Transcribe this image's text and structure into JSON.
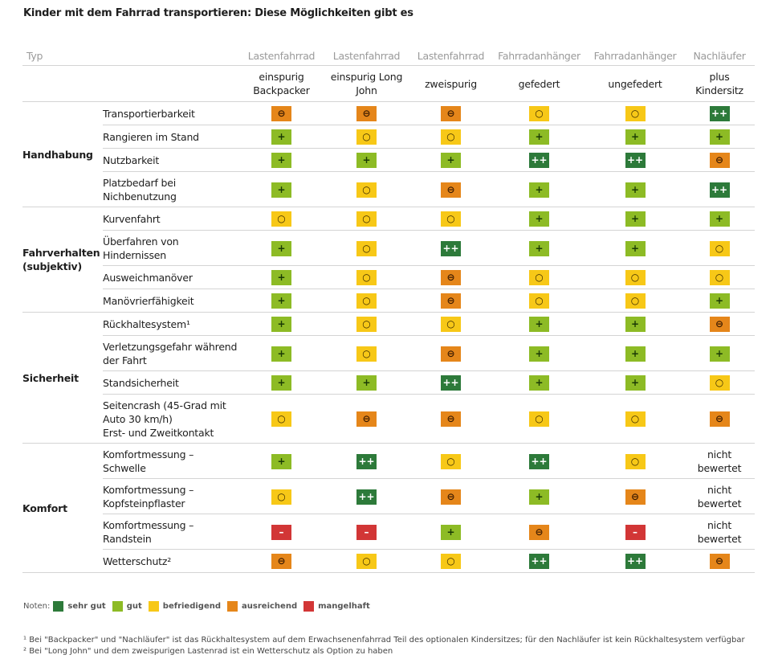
{
  "title": "Kinder mit dem Fahrrad transportieren: Diese Möglichkeiten gibt es",
  "header": {
    "typ_label": "Typ",
    "columns": [
      {
        "type": "Lastenfahrrad",
        "variant": "einspurig Backpacker"
      },
      {
        "type": "Lastenfahrrad",
        "variant": "einspurig Long John"
      },
      {
        "type": "Lastenfahrrad",
        "variant": "zweispurig"
      },
      {
        "type": "Fahrradanhänger",
        "variant": "gefedert"
      },
      {
        "type": "Fahrradanhänger",
        "variant": "ungefedert"
      },
      {
        "type": "Nachläufer",
        "variant": "plus Kindersitz"
      }
    ]
  },
  "grade_symbols": {
    "sehrgut": "++",
    "gut": "+",
    "befriedigend": "○",
    "ausreichend": "⊖",
    "mangelhaft": "–"
  },
  "categories": [
    {
      "name": "Handhabung",
      "rows": [
        {
          "criterion": "Transportierbarkeit",
          "ratings": [
            "ausreichend",
            "ausreichend",
            "ausreichend",
            "befriedigend",
            "befriedigend",
            "sehrgut"
          ]
        },
        {
          "criterion": "Rangieren im Stand",
          "ratings": [
            "gut",
            "befriedigend",
            "befriedigend",
            "gut",
            "gut",
            "gut"
          ]
        },
        {
          "criterion": "Nutzbarkeit",
          "ratings": [
            "gut",
            "gut",
            "gut",
            "sehrgut",
            "sehrgut",
            "ausreichend"
          ]
        },
        {
          "criterion": "Platzbedarf bei Nichbenutzung",
          "ratings": [
            "gut",
            "befriedigend",
            "ausreichend",
            "gut",
            "gut",
            "sehrgut"
          ]
        }
      ]
    },
    {
      "name": "Fahrverhalten (subjektiv)",
      "rows": [
        {
          "criterion": "Kurvenfahrt",
          "ratings": [
            "befriedigend",
            "befriedigend",
            "befriedigend",
            "gut",
            "gut",
            "gut"
          ]
        },
        {
          "criterion": "Überfahren von Hindernissen",
          "ratings": [
            "gut",
            "befriedigend",
            "sehrgut",
            "gut",
            "gut",
            "befriedigend"
          ]
        },
        {
          "criterion": "Ausweichmanöver",
          "ratings": [
            "gut",
            "befriedigend",
            "ausreichend",
            "befriedigend",
            "befriedigend",
            "befriedigend"
          ]
        },
        {
          "criterion": "Manövrierfähigkeit",
          "ratings": [
            "gut",
            "befriedigend",
            "ausreichend",
            "befriedigend",
            "befriedigend",
            "gut"
          ]
        }
      ]
    },
    {
      "name": "Sicherheit",
      "rows": [
        {
          "criterion": "Rückhaltesystem¹",
          "ratings": [
            "gut",
            "befriedigend",
            "befriedigend",
            "gut",
            "gut",
            "ausreichend"
          ]
        },
        {
          "criterion": "Verletzungsgefahr während der Fahrt",
          "ratings": [
            "gut",
            "befriedigend",
            "ausreichend",
            "gut",
            "gut",
            "gut"
          ]
        },
        {
          "criterion": "Standsicherheit",
          "ratings": [
            "gut",
            "gut",
            "sehrgut",
            "gut",
            "gut",
            "befriedigend"
          ]
        },
        {
          "criterion": "Seitencrash (45-Grad mit Auto 30 km/h) Erst- und Zweitkontakt",
          "ratings": [
            "befriedigend",
            "ausreichend",
            "ausreichend",
            "befriedigend",
            "befriedigend",
            "ausreichend"
          ]
        }
      ]
    },
    {
      "name": "Komfort",
      "rows": [
        {
          "criterion": "Komfortmessung – Schwelle",
          "ratings": [
            "gut",
            "sehrgut",
            "befriedigend",
            "sehrgut",
            "befriedigend",
            "nicht bewertet"
          ]
        },
        {
          "criterion": "Komfortmessung – Kopfsteinpflaster",
          "ratings": [
            "befriedigend",
            "sehrgut",
            "ausreichend",
            "gut",
            "ausreichend",
            "nicht bewertet"
          ]
        },
        {
          "criterion": "Komfortmessung – Randstein",
          "ratings": [
            "mangelhaft",
            "mangelhaft",
            "gut",
            "ausreichend",
            "mangelhaft",
            "nicht bewertet"
          ]
        },
        {
          "criterion": "Wetterschutz²",
          "ratings": [
            "ausreichend",
            "befriedigend",
            "befriedigend",
            "sehrgut",
            "sehrgut",
            "ausreichend"
          ]
        }
      ]
    }
  ],
  "legend": {
    "label": "Noten:",
    "items": [
      {
        "key": "sehrgut",
        "label": "sehr gut",
        "color": "#2d7a3a"
      },
      {
        "key": "gut",
        "label": "gut",
        "color": "#8dbb25"
      },
      {
        "key": "befriedigend",
        "label": "befriedigend",
        "color": "#f7c817"
      },
      {
        "key": "ausreichend",
        "label": "ausreichend",
        "color": "#e5861a"
      },
      {
        "key": "mangelhaft",
        "label": "mangelhaft",
        "color": "#d23636"
      }
    ]
  },
  "footnotes": [
    "¹ Bei \"Backpacker\" und \"Nachläufer\" ist das Rückhaltesystem auf dem Erwachsenenfahrrad Teil des optionalen Kindersitzes; für den Nachläufer ist kein Rückhaltesystem verfügbar",
    "² Bei \"Long John\" und dem zweispurigen Lastenrad ist ein Wetterschutz als Option zu haben"
  ]
}
